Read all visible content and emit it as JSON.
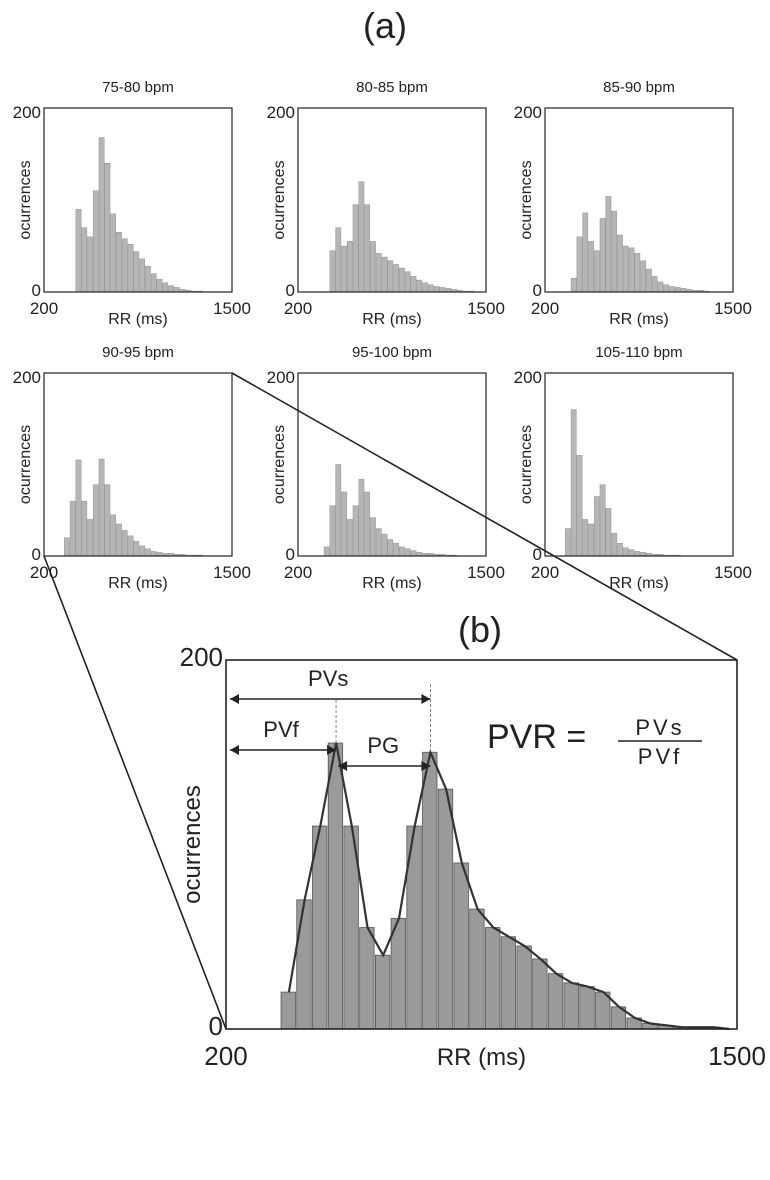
{
  "figure": {
    "label_a": "(a)",
    "label_b": "(b)"
  },
  "chart_data": [
    {
      "type": "bar",
      "title": "75-80 bpm",
      "xlabel": "RR (ms)",
      "ylabel": "ocurrences",
      "xlim": [
        200,
        1500
      ],
      "ylim": [
        0,
        200
      ],
      "x_tick_labels": [
        "200",
        "1500"
      ],
      "y_tick_labels": [
        "0",
        "200"
      ],
      "series": [
        {
          "x": [
            400,
            440,
            480,
            520,
            560,
            600,
            640,
            680,
            720,
            760,
            800,
            840,
            880,
            920,
            960,
            1000,
            1040,
            1080,
            1120,
            1160,
            1200,
            1240,
            1280,
            1320,
            1360,
            1400,
            1440,
            1480
          ],
          "values": [
            0,
            90,
            70,
            60,
            110,
            168,
            140,
            85,
            65,
            58,
            52,
            44,
            36,
            28,
            20,
            14,
            10,
            7,
            5,
            3,
            2,
            1,
            1,
            0,
            0,
            0,
            0,
            0
          ]
        }
      ]
    },
    {
      "type": "bar",
      "title": "80-85 bpm",
      "xlabel": "RR (ms)",
      "ylabel": "ocurrences",
      "xlim": [
        200,
        1500
      ],
      "ylim": [
        0,
        200
      ],
      "x_tick_labels": [
        "200",
        "1500"
      ],
      "y_tick_labels": [
        "0",
        "200"
      ],
      "series": [
        {
          "x": [
            400,
            440,
            480,
            520,
            560,
            600,
            640,
            680,
            720,
            760,
            800,
            840,
            880,
            920,
            960,
            1000,
            1040,
            1080,
            1120,
            1160,
            1200,
            1240,
            1280,
            1320,
            1360,
            1400,
            1440,
            1480
          ],
          "values": [
            0,
            45,
            70,
            50,
            55,
            95,
            120,
            95,
            55,
            42,
            38,
            34,
            30,
            26,
            22,
            17,
            13,
            10,
            8,
            6,
            5,
            4,
            3,
            2,
            1,
            1,
            0,
            0
          ]
        }
      ]
    },
    {
      "type": "bar",
      "title": "85-90 bpm",
      "xlabel": "RR (ms)",
      "ylabel": "ocurrences",
      "xlim": [
        200,
        1500
      ],
      "ylim": [
        0,
        200
      ],
      "x_tick_labels": [
        "200",
        "1500"
      ],
      "y_tick_labels": [
        "0",
        "200"
      ],
      "series": [
        {
          "x": [
            400,
            440,
            480,
            520,
            560,
            600,
            640,
            680,
            720,
            760,
            800,
            840,
            880,
            920,
            960,
            1000,
            1040,
            1080,
            1120,
            1160,
            1200,
            1240,
            1280,
            1320,
            1360,
            1400,
            1440,
            1480
          ],
          "values": [
            15,
            60,
            86,
            55,
            45,
            80,
            104,
            88,
            62,
            50,
            48,
            42,
            34,
            25,
            17,
            11,
            8,
            6,
            5,
            4,
            3,
            2,
            2,
            1,
            0,
            0,
            0,
            0
          ]
        }
      ]
    },
    {
      "type": "bar",
      "title": "90-95 bpm",
      "xlabel": "RR (ms)",
      "ylabel": "ocurrences",
      "xlim": [
        200,
        1500
      ],
      "ylim": [
        0,
        200
      ],
      "x_tick_labels": [
        "200",
        "1500"
      ],
      "y_tick_labels": [
        "0",
        "200"
      ],
      "series": [
        {
          "x": [
            360,
            400,
            440,
            480,
            520,
            560,
            600,
            640,
            680,
            720,
            760,
            800,
            840,
            880,
            920,
            960,
            1000,
            1040,
            1080,
            1120,
            1160,
            1200,
            1240,
            1280,
            1320,
            1360,
            1400,
            1440,
            1480
          ],
          "values": [
            20,
            60,
            105,
            60,
            40,
            78,
            106,
            78,
            45,
            35,
            28,
            22,
            16,
            11,
            8,
            5,
            4,
            3,
            3,
            2,
            2,
            1,
            1,
            1,
            0,
            0,
            0,
            0,
            0
          ]
        }
      ]
    },
    {
      "type": "bar",
      "title": "95-100 bpm",
      "xlabel": "RR (ms)",
      "ylabel": "ocurrences",
      "xlim": [
        200,
        1500
      ],
      "ylim": [
        0,
        200
      ],
      "x_tick_labels": [
        "200",
        "1500"
      ],
      "y_tick_labels": [
        "0",
        "200"
      ],
      "series": [
        {
          "x": [
            400,
            440,
            480,
            520,
            560,
            600,
            640,
            680,
            720,
            760,
            800,
            840,
            880,
            920,
            960,
            1000,
            1040,
            1080,
            1120,
            1160,
            1200,
            1240,
            1280,
            1320,
            1360,
            1400,
            1440,
            1480
          ],
          "values": [
            10,
            55,
            100,
            70,
            40,
            55,
            84,
            70,
            42,
            30,
            24,
            18,
            14,
            10,
            8,
            6,
            4,
            3,
            3,
            2,
            2,
            1,
            1,
            0,
            0,
            0,
            0,
            0
          ]
        }
      ]
    },
    {
      "type": "bar",
      "title": "105-110 bpm",
      "xlabel": "RR (ms)",
      "ylabel": "ocurrences",
      "xlim": [
        200,
        1500
      ],
      "ylim": [
        0,
        200
      ],
      "x_tick_labels": [
        "200",
        "1500"
      ],
      "y_tick_labels": [
        "0",
        "200"
      ],
      "series": [
        {
          "x": [
            360,
            400,
            440,
            480,
            520,
            560,
            600,
            640,
            680,
            720,
            760,
            800,
            840,
            880,
            920,
            960,
            1000,
            1040,
            1080,
            1120,
            1160,
            1200,
            1240,
            1280,
            1320,
            1360,
            1400,
            1440,
            1480
          ],
          "values": [
            30,
            160,
            110,
            40,
            35,
            65,
            78,
            52,
            25,
            14,
            9,
            7,
            5,
            4,
            3,
            2,
            2,
            1,
            1,
            1,
            0,
            0,
            0,
            0,
            0,
            0,
            0,
            0,
            0
          ]
        }
      ]
    },
    {
      "type": "bar",
      "title": "",
      "xlabel": "RR (ms)",
      "ylabel": "ocurrences",
      "xlim": [
        200,
        1500
      ],
      "ylim": [
        0,
        200
      ],
      "x_tick_labels": [
        "200",
        "1500"
      ],
      "y_tick_labels": [
        "0",
        "200"
      ],
      "series": [
        {
          "x": [
            360,
            400,
            440,
            480,
            520,
            560,
            600,
            640,
            680,
            720,
            760,
            800,
            840,
            880,
            920,
            960,
            1000,
            1040,
            1080,
            1120,
            1160,
            1200,
            1240,
            1280,
            1320,
            1360,
            1400,
            1440,
            1480
          ],
          "values": [
            20,
            70,
            110,
            155,
            110,
            55,
            40,
            60,
            110,
            150,
            130,
            90,
            65,
            55,
            50,
            45,
            38,
            30,
            25,
            23,
            20,
            12,
            6,
            3,
            2,
            1,
            1,
            1,
            0
          ]
        }
      ],
      "annotations": {
        "pvs": "PVs",
        "pvf": "PVf",
        "pg": "PG",
        "formula_lhs": "PVR =",
        "formula_num": "PVs",
        "formula_den": "PVf"
      }
    }
  ]
}
